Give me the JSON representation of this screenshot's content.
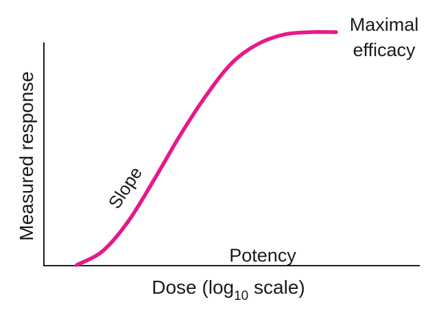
{
  "chart_data": {
    "type": "line",
    "xlabel": "Dose (log",
    "xlabel_sub": "10",
    "xlabel_suffix": " scale)",
    "ylabel": "Measured response",
    "annotations": {
      "top": [
        "Maximal",
        "efficacy"
      ],
      "middle": "Slope",
      "bottom": "Potency"
    },
    "x_scale": "log",
    "grid": false,
    "legend": "none",
    "series": [
      {
        "color": "#e6198a",
        "x": [
          0.0,
          0.1,
          0.2,
          0.3,
          0.4,
          0.5,
          0.6,
          0.7,
          0.8,
          0.9,
          1.0
        ],
        "y": [
          0.0,
          0.06,
          0.19,
          0.37,
          0.56,
          0.73,
          0.87,
          0.95,
          0.99,
          1.0,
          1.0
        ]
      }
    ],
    "xlim": [
      0,
      1
    ],
    "ylim": [
      0,
      1
    ]
  }
}
